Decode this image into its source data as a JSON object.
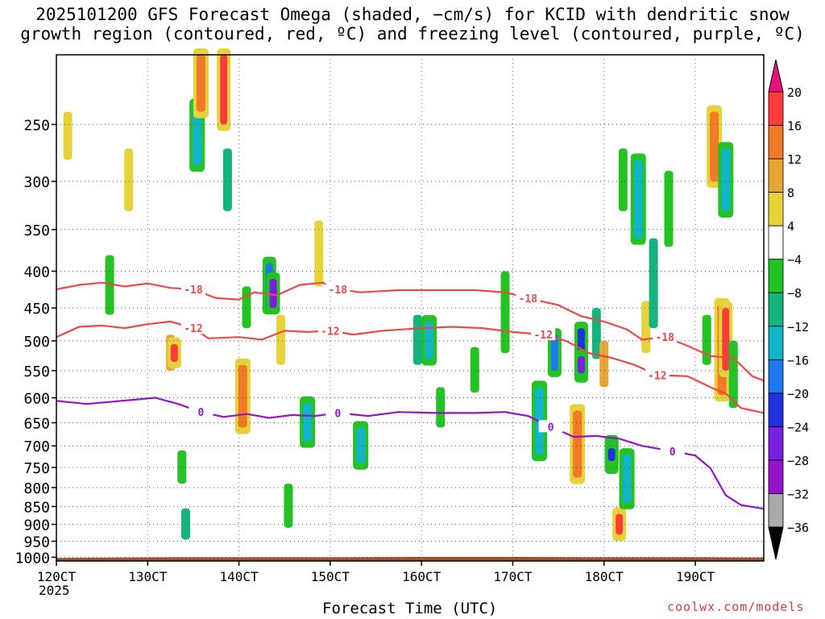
{
  "chart_data": {
    "type": "heatmap",
    "title_line1": "2025101200 GFS Forecast Omega (shaded, −cm/s) for KCID with dendritic snow",
    "title_line2": "growth region (contoured, red, ºC) and freezing level (contoured, purple, ºC)",
    "xlabel": "Forecast Time (UTC)",
    "credit": "coolwx.com/models",
    "x_tick_labels": [
      "120CT",
      "130CT",
      "140CT",
      "150CT",
      "160CT",
      "170CT",
      "180CT",
      "190CT"
    ],
    "x_tick_hours": [
      0,
      24,
      48,
      72,
      96,
      120,
      144,
      168
    ],
    "x_year_label": "2025",
    "x_range_hours": [
      0,
      186
    ],
    "y_ticks": [
      250,
      300,
      350,
      400,
      450,
      500,
      550,
      600,
      650,
      700,
      750,
      800,
      850,
      900,
      950,
      1000
    ],
    "y_range_hpa": [
      200,
      1012
    ],
    "y_scale": "log",
    "surface_pressure": [
      1002,
      1001,
      1000,
      1000,
      1000,
      1000,
      999,
      999,
      999,
      1000,
      1000,
      1000,
      1001
    ],
    "colorbar": {
      "labels": [
        "20",
        "16",
        "12",
        "8",
        "4",
        "−4",
        "−8",
        "−12",
        "−16",
        "−20",
        "−24",
        "−28",
        "−32",
        "−36"
      ],
      "colors": [
        "#ff1f5a",
        "#ff3c3c",
        "#f07a26",
        "#e8a634",
        "#e8d23a",
        "#ffffff",
        "#22c322",
        "#14b47e",
        "#14b4c8",
        "#1e78f0",
        "#1e32dc",
        "#7a1ee0",
        "#9614c8",
        "#aaaaaa",
        "#000000"
      ],
      "top_arrow_color": "#e8137a",
      "bottom_arrow_color": "#000000"
    },
    "omega_features": [
      {
        "hour": 3,
        "p": 260,
        "h": 40,
        "v": 5
      },
      {
        "hour": 14,
        "p": 420,
        "h": 80,
        "v": -5
      },
      {
        "hour": 19,
        "p": 300,
        "h": 60,
        "v": 6
      },
      {
        "hour": 30,
        "p": 520,
        "h": 60,
        "v": 10
      },
      {
        "hour": 31,
        "p": 520,
        "h": 30,
        "v": 16
      },
      {
        "hour": 33,
        "p": 750,
        "h": 80,
        "v": -6
      },
      {
        "hour": 34,
        "p": 900,
        "h": 90,
        "v": -9
      },
      {
        "hour": 37,
        "p": 260,
        "h": 50,
        "v": -12
      },
      {
        "hour": 38,
        "p": 220,
        "h": 40,
        "v": 14
      },
      {
        "hour": 44,
        "p": 220,
        "h": 60,
        "v": 16
      },
      {
        "hour": 45,
        "p": 300,
        "h": 60,
        "v": -10
      },
      {
        "hour": 49,
        "p": 600,
        "h": 120,
        "v": 12
      },
      {
        "hour": 50,
        "p": 450,
        "h": 60,
        "v": -6
      },
      {
        "hour": 56,
        "p": 420,
        "h": 60,
        "v": -16
      },
      {
        "hour": 57,
        "p": 430,
        "h": 40,
        "v": -24
      },
      {
        "hour": 59,
        "p": 500,
        "h": 80,
        "v": 5
      },
      {
        "hour": 61,
        "p": 850,
        "h": 120,
        "v": -6
      },
      {
        "hour": 66,
        "p": 650,
        "h": 80,
        "v": -12
      },
      {
        "hour": 69,
        "p": 380,
        "h": 80,
        "v": 5
      },
      {
        "hour": 80,
        "p": 700,
        "h": 80,
        "v": -13
      },
      {
        "hour": 95,
        "p": 500,
        "h": 80,
        "v": -9
      },
      {
        "hour": 98,
        "p": 500,
        "h": 60,
        "v": -13
      },
      {
        "hour": 101,
        "p": 620,
        "h": 80,
        "v": -6
      },
      {
        "hour": 110,
        "p": 550,
        "h": 80,
        "v": -5
      },
      {
        "hour": 118,
        "p": 460,
        "h": 120,
        "v": -5
      },
      {
        "hour": 127,
        "p": 650,
        "h": 140,
        "v": -12
      },
      {
        "hour": 131,
        "p": 520,
        "h": 60,
        "v": -16
      },
      {
        "hour": 138,
        "p": 520,
        "h": 80,
        "v": -21
      },
      {
        "hour": 138,
        "p": 540,
        "h": 30,
        "v": -26
      },
      {
        "hour": 137,
        "p": 700,
        "h": 150,
        "v": 12
      },
      {
        "hour": 142,
        "p": 490,
        "h": 80,
        "v": -8
      },
      {
        "hour": 144,
        "p": 540,
        "h": 80,
        "v": 10
      },
      {
        "hour": 146,
        "p": 720,
        "h": 60,
        "v": -18
      },
      {
        "hour": 146,
        "p": 720,
        "h": 30,
        "v": -22
      },
      {
        "hour": 148,
        "p": 900,
        "h": 60,
        "v": 16
      },
      {
        "hour": 150,
        "p": 780,
        "h": 120,
        "v": -12
      },
      {
        "hour": 149,
        "p": 300,
        "h": 60,
        "v": -6
      },
      {
        "hour": 153,
        "p": 320,
        "h": 80,
        "v": -14
      },
      {
        "hour": 155,
        "p": 480,
        "h": 80,
        "v": 6
      },
      {
        "hour": 157,
        "p": 420,
        "h": 120,
        "v": -8
      },
      {
        "hour": 161,
        "p": 330,
        "h": 80,
        "v": -6
      },
      {
        "hour": 171,
        "p": 500,
        "h": 80,
        "v": -6
      },
      {
        "hour": 173,
        "p": 270,
        "h": 60,
        "v": 12
      },
      {
        "hour": 175,
        "p": 520,
        "h": 150,
        "v": 14
      },
      {
        "hour": 176,
        "p": 500,
        "h": 100,
        "v": 18
      },
      {
        "hour": 176,
        "p": 300,
        "h": 60,
        "v": -14
      },
      {
        "hour": 178,
        "p": 560,
        "h": 120,
        "v": -6
      }
    ],
    "contours": [
      {
        "label": "-18",
        "color": "#f04848",
        "series": [
          [
            0,
            424
          ],
          [
            6,
            418
          ],
          [
            12,
            415
          ],
          [
            18,
            420
          ],
          [
            24,
            416
          ],
          [
            30,
            422
          ],
          [
            36,
            424
          ],
          [
            42,
            436
          ],
          [
            48,
            438
          ],
          [
            52,
            428
          ],
          [
            58,
            432
          ],
          [
            64,
            418
          ],
          [
            70,
            415
          ],
          [
            74,
            424
          ],
          [
            80,
            428
          ],
          [
            90,
            425
          ],
          [
            100,
            425
          ],
          [
            110,
            425
          ],
          [
            118,
            428
          ],
          [
            124,
            436
          ],
          [
            132,
            446
          ],
          [
            138,
            462
          ],
          [
            144,
            470
          ],
          [
            150,
            482
          ],
          [
            154,
            498
          ],
          [
            160,
            494
          ],
          [
            166,
            508
          ],
          [
            172,
            525
          ],
          [
            178,
            528
          ],
          [
            183,
            560
          ],
          [
            186,
            568
          ]
        ]
      },
      {
        "label": "-12",
        "color": "#f04848",
        "series": [
          [
            0,
            494
          ],
          [
            6,
            478
          ],
          [
            12,
            476
          ],
          [
            18,
            480
          ],
          [
            24,
            474
          ],
          [
            30,
            470
          ],
          [
            36,
            480
          ],
          [
            40,
            496
          ],
          [
            48,
            494
          ],
          [
            54,
            498
          ],
          [
            60,
            484
          ],
          [
            66,
            486
          ],
          [
            72,
            484
          ],
          [
            78,
            490
          ],
          [
            86,
            484
          ],
          [
            96,
            480
          ],
          [
            104,
            478
          ],
          [
            112,
            480
          ],
          [
            120,
            486
          ],
          [
            128,
            490
          ],
          [
            134,
            500
          ],
          [
            140,
            520
          ],
          [
            146,
            528
          ],
          [
            152,
            540
          ],
          [
            158,
            558
          ],
          [
            166,
            560
          ],
          [
            172,
            580
          ],
          [
            176,
            592
          ],
          [
            180,
            620
          ],
          [
            186,
            630
          ]
        ]
      },
      {
        "label": "0",
        "color": "#9614c8",
        "series": [
          [
            0,
            606
          ],
          [
            8,
            612
          ],
          [
            14,
            608
          ],
          [
            20,
            604
          ],
          [
            26,
            600
          ],
          [
            32,
            612
          ],
          [
            38,
            628
          ],
          [
            44,
            638
          ],
          [
            50,
            632
          ],
          [
            56,
            640
          ],
          [
            62,
            634
          ],
          [
            68,
            636
          ],
          [
            74,
            630
          ],
          [
            82,
            636
          ],
          [
            90,
            628
          ],
          [
            100,
            630
          ],
          [
            110,
            630
          ],
          [
            118,
            628
          ],
          [
            124,
            636
          ],
          [
            130,
            658
          ],
          [
            136,
            680
          ],
          [
            142,
            678
          ],
          [
            148,
            684
          ],
          [
            154,
            700
          ],
          [
            162,
            712
          ],
          [
            168,
            722
          ],
          [
            172,
            752
          ],
          [
            176,
            820
          ],
          [
            180,
            846
          ],
          [
            186,
            856
          ]
        ]
      }
    ]
  }
}
